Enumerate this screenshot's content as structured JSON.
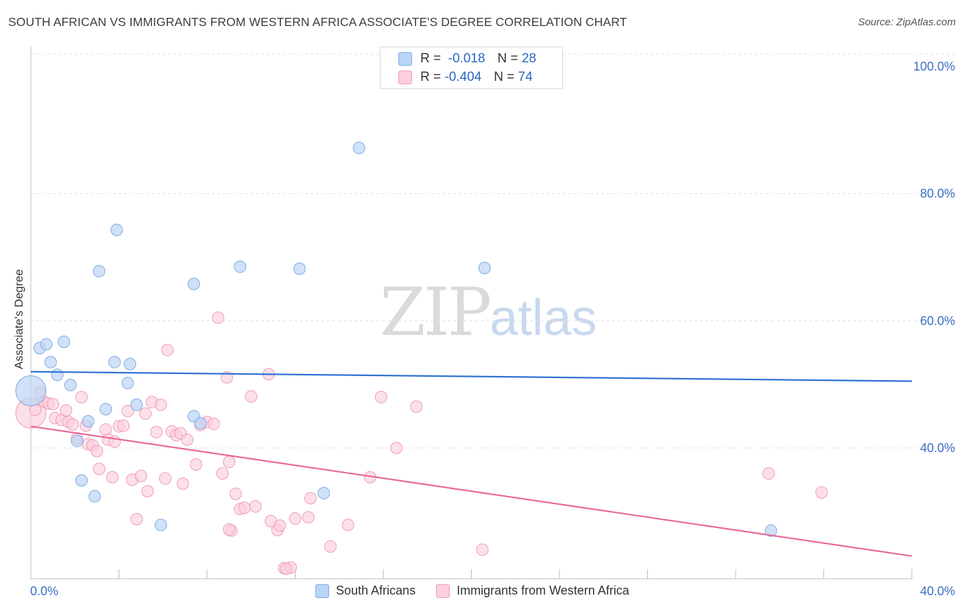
{
  "title": "SOUTH AFRICAN VS IMMIGRANTS FROM WESTERN AFRICA ASSOCIATE'S DEGREE CORRELATION CHART",
  "source": "Source: ZipAtlas.com",
  "watermark": {
    "zip": "ZIP",
    "atlas": "atlas"
  },
  "stats": {
    "r_label": "R =",
    "n_label": "N =",
    "series1": {
      "r": "-0.018",
      "n": "28"
    },
    "series2": {
      "r": "-0.404",
      "n": "74"
    }
  },
  "colors": {
    "blue_fill": "#bcd4f5",
    "blue_stroke": "#7fa9e6",
    "blue_line": "#2e72d2",
    "pink_fill": "#fbcfdc",
    "pink_stroke": "#ef9bb5",
    "pink_line": "#e8699a",
    "axis_text": "#3a6fc4"
  },
  "chart_data": {
    "type": "scatter",
    "title": "SOUTH AFRICAN VS IMMIGRANTS FROM WESTERN AFRICA ASSOCIATE'S DEGREE CORRELATION CHART",
    "xlabel": "",
    "ylabel": "Associate's Degree",
    "xlim": [
      0,
      40
    ],
    "ylim": [
      20,
      102
    ],
    "x_tick_labels": [
      "0.0%",
      "40.0%"
    ],
    "y_ticks": [
      40,
      60,
      80,
      100
    ],
    "y_tick_labels": [
      "40.0%",
      "60.0%",
      "80.0%",
      "100.0%"
    ],
    "grid": "horizontal dashed",
    "legend": "bottom-center",
    "series": [
      {
        "name": "South Africans",
        "color": "blue",
        "trend": {
          "x": [
            0,
            40
          ],
          "y": [
            52.0,
            50.5
          ]
        },
        "points": [
          [
            0.0,
            49.0,
            "large"
          ],
          [
            0.4,
            55.7
          ],
          [
            0.7,
            56.3
          ],
          [
            1.5,
            56.7
          ],
          [
            0.9,
            53.5
          ],
          [
            1.2,
            51.5
          ],
          [
            1.8,
            49.9
          ],
          [
            2.1,
            41.1
          ],
          [
            2.3,
            34.9
          ],
          [
            2.6,
            44.2
          ],
          [
            2.9,
            32.4
          ],
          [
            3.1,
            67.8
          ],
          [
            3.4,
            46.1
          ],
          [
            3.8,
            53.5
          ],
          [
            3.9,
            74.3
          ],
          [
            4.4,
            50.2
          ],
          [
            4.5,
            53.2
          ],
          [
            4.8,
            46.8
          ],
          [
            5.9,
            27.9
          ],
          [
            7.4,
            65.8
          ],
          [
            7.4,
            45.0
          ],
          [
            7.7,
            43.9
          ],
          [
            9.5,
            68.5
          ],
          [
            12.2,
            68.2
          ],
          [
            13.3,
            32.9
          ],
          [
            14.9,
            87.2
          ],
          [
            20.6,
            68.3
          ],
          [
            33.6,
            27.0
          ]
        ]
      },
      {
        "name": "Immigrants from Western Africa",
        "color": "pink",
        "trend": {
          "x": [
            0,
            40
          ],
          "y": [
            43.4,
            23.0
          ]
        },
        "points": [
          [
            0.0,
            45.5,
            "large"
          ],
          [
            0.2,
            46.0
          ],
          [
            0.4,
            48.7
          ],
          [
            0.6,
            47.3
          ],
          [
            0.8,
            47.0
          ],
          [
            1.0,
            46.9
          ],
          [
            1.1,
            44.7
          ],
          [
            1.4,
            44.4
          ],
          [
            1.6,
            45.9
          ],
          [
            1.7,
            44.1
          ],
          [
            1.9,
            43.7
          ],
          [
            2.1,
            41.5
          ],
          [
            2.3,
            48.0
          ],
          [
            2.5,
            43.5
          ],
          [
            2.6,
            40.6
          ],
          [
            2.8,
            40.4
          ],
          [
            3.0,
            39.5
          ],
          [
            3.1,
            36.7
          ],
          [
            3.4,
            42.9
          ],
          [
            3.5,
            41.3
          ],
          [
            3.7,
            35.4
          ],
          [
            3.8,
            41.0
          ],
          [
            4.0,
            43.4
          ],
          [
            4.2,
            43.5
          ],
          [
            4.4,
            45.8
          ],
          [
            4.6,
            35.0
          ],
          [
            4.8,
            28.8
          ],
          [
            5.0,
            35.6
          ],
          [
            5.2,
            45.4
          ],
          [
            5.3,
            33.2
          ],
          [
            5.5,
            47.2
          ],
          [
            5.7,
            42.5
          ],
          [
            5.9,
            46.8
          ],
          [
            6.1,
            35.2
          ],
          [
            6.2,
            55.4
          ],
          [
            6.4,
            42.6
          ],
          [
            6.6,
            42.0
          ],
          [
            6.8,
            42.3
          ],
          [
            6.9,
            34.4
          ],
          [
            7.1,
            41.3
          ],
          [
            7.5,
            37.4
          ],
          [
            7.7,
            43.6
          ],
          [
            8.0,
            44.1
          ],
          [
            8.3,
            43.8
          ],
          [
            8.5,
            60.5
          ],
          [
            8.7,
            36.0
          ],
          [
            8.9,
            51.1
          ],
          [
            9.0,
            37.8
          ],
          [
            9.1,
            27.0
          ],
          [
            9.3,
            32.8
          ],
          [
            9.5,
            30.4
          ],
          [
            9.7,
            30.6
          ],
          [
            10.0,
            48.1
          ],
          [
            10.2,
            30.8
          ],
          [
            10.8,
            51.6
          ],
          [
            10.9,
            28.5
          ],
          [
            11.2,
            27.1
          ],
          [
            11.3,
            27.8
          ],
          [
            11.5,
            21.1
          ],
          [
            11.8,
            21.2
          ],
          [
            12.0,
            28.9
          ],
          [
            12.7,
            32.1
          ],
          [
            12.6,
            29.1
          ],
          [
            13.6,
            24.5
          ],
          [
            14.4,
            27.9
          ],
          [
            15.4,
            35.4
          ],
          [
            15.9,
            48.0
          ],
          [
            16.6,
            40.0
          ],
          [
            17.5,
            46.5
          ],
          [
            20.5,
            24.0
          ],
          [
            33.5,
            36.0
          ],
          [
            35.9,
            33.0
          ],
          [
            11.6,
            21.0
          ],
          [
            9.0,
            27.2
          ]
        ]
      }
    ]
  },
  "legend": {
    "items": [
      "South Africans",
      "Immigrants from Western Africa"
    ]
  }
}
